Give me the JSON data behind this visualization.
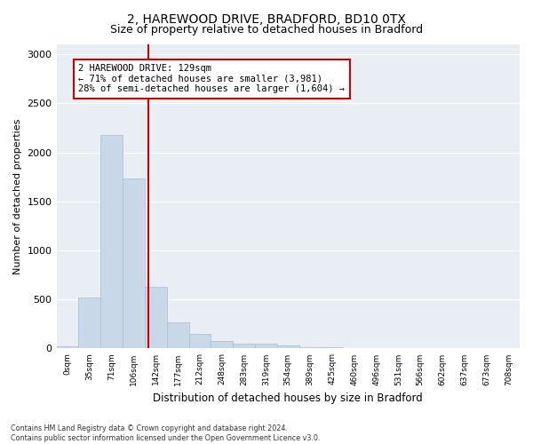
{
  "title1": "2, HAREWOOD DRIVE, BRADFORD, BD10 0TX",
  "title2": "Size of property relative to detached houses in Bradford",
  "xlabel": "Distribution of detached houses by size in Bradford",
  "ylabel": "Number of detached properties",
  "bin_labels": [
    "0sqm",
    "35sqm",
    "71sqm",
    "106sqm",
    "142sqm",
    "177sqm",
    "212sqm",
    "248sqm",
    "283sqm",
    "319sqm",
    "354sqm",
    "389sqm",
    "425sqm",
    "460sqm",
    "496sqm",
    "531sqm",
    "566sqm",
    "602sqm",
    "637sqm",
    "673sqm",
    "708sqm"
  ],
  "bar_values": [
    25,
    520,
    2180,
    1730,
    630,
    270,
    145,
    80,
    50,
    45,
    30,
    15,
    10,
    8,
    5,
    4,
    3,
    2,
    2,
    1,
    1
  ],
  "bar_color": "#c8d8e8",
  "bar_edge_color": "#a8bece",
  "vline_color": "#cc0000",
  "annotation_text": "2 HAREWOOD DRIVE: 129sqm\n← 71% of detached houses are smaller (3,981)\n28% of semi-detached houses are larger (1,604) →",
  "annotation_box_color": "#cc0000",
  "ylim": [
    0,
    3100
  ],
  "yticks": [
    0,
    500,
    1000,
    1500,
    2000,
    2500,
    3000
  ],
  "footnote": "Contains HM Land Registry data © Crown copyright and database right 2024.\nContains public sector information licensed under the Open Government Licence v3.0.",
  "fig_bg_color": "#ffffff",
  "plot_bg_color": "#e8eef4"
}
